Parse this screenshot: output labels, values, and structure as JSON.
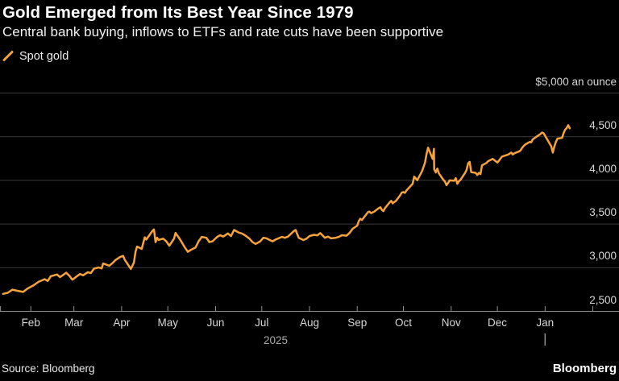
{
  "header": {
    "title": "Gold Emerged from Its Best Year Since 1979",
    "subtitle": "Central bank buying, inflows to ETFs and rate cuts have been supportive"
  },
  "legend": {
    "label": "Spot gold"
  },
  "footer": {
    "source": "Source: Bloomberg",
    "logo": "Bloomberg"
  },
  "colors": {
    "background": "#000000",
    "accent": "#F7A23A",
    "grid": "#3b3b3b",
    "axis": "#8f8f8f",
    "text_primary": "#ffffff",
    "text_secondary": "#d6d6d6",
    "text_muted": "#a8a8a8"
  },
  "chart_data": {
    "type": "line",
    "title": "Gold Emerged from Its Best Year Since 1979",
    "subtitle": "Central bank buying, inflows to ETFs and rate cuts have been supportive",
    "grid": true,
    "legend_position": "top-left",
    "x_axis": {
      "day0": "2025-01-01",
      "domain_days": [
        11,
        413
      ],
      "tick_labels": [
        "Feb",
        "Mar",
        "Apr",
        "May",
        "Jun",
        "Jul",
        "Aug",
        "Sep",
        "Oct",
        "Nov",
        "Dec",
        "Jan"
      ],
      "tick_days": [
        31,
        59,
        90,
        120,
        151,
        181,
        212,
        243,
        273,
        304,
        334,
        365
      ],
      "extra_tick_days": [
        11,
        396
      ],
      "year_label": "2025",
      "year_label_day": 190,
      "year_start_marker_day": 365
    },
    "y_axis": {
      "domain": [
        2500,
        5000
      ],
      "ticks": [
        2500,
        3000,
        3500,
        4000,
        4500,
        5000
      ],
      "tick_labels": [
        "2,500",
        "3,000",
        "3,500",
        "4,000",
        "4,500"
      ],
      "top_label": "$5,000 an ounce",
      "unit": "USD per troy ounce"
    },
    "series": [
      {
        "name": "Spot gold",
        "color": "#F7A23A",
        "points": [
          [
            13,
            2700
          ],
          [
            16,
            2712
          ],
          [
            19,
            2748
          ],
          [
            22,
            2736
          ],
          [
            26,
            2722
          ],
          [
            29,
            2762
          ],
          [
            33,
            2800
          ],
          [
            36,
            2838
          ],
          [
            40,
            2868
          ],
          [
            42,
            2848
          ],
          [
            44,
            2902
          ],
          [
            48,
            2922
          ],
          [
            50,
            2892
          ],
          [
            54,
            2942
          ],
          [
            56,
            2908
          ],
          [
            58,
            2862
          ],
          [
            61,
            2902
          ],
          [
            63,
            2928
          ],
          [
            65,
            2912
          ],
          [
            68,
            2948
          ],
          [
            70,
            2938
          ],
          [
            72,
            2988
          ],
          [
            75,
            3002
          ],
          [
            77,
            2992
          ],
          [
            78,
            3048
          ],
          [
            82,
            3022
          ],
          [
            84,
            3052
          ],
          [
            86,
            3088
          ],
          [
            89,
            3122
          ],
          [
            91,
            3135
          ],
          [
            92,
            3092
          ],
          [
            96,
            2985
          ],
          [
            98,
            3060
          ],
          [
            99,
            3180
          ],
          [
            100,
            3242
          ],
          [
            103,
            3215
          ],
          [
            105,
            3348
          ],
          [
            106,
            3322
          ],
          [
            110,
            3422
          ],
          [
            111,
            3438
          ],
          [
            112,
            3292
          ],
          [
            113,
            3342
          ],
          [
            114,
            3318
          ],
          [
            117,
            3332
          ],
          [
            119,
            3302
          ],
          [
            121,
            3252
          ],
          [
            124,
            3332
          ],
          [
            125,
            3398
          ],
          [
            126,
            3372
          ],
          [
            128,
            3322
          ],
          [
            131,
            3232
          ],
          [
            133,
            3182
          ],
          [
            135,
            3205
          ],
          [
            138,
            3232
          ],
          [
            140,
            3302
          ],
          [
            142,
            3352
          ],
          [
            145,
            3342
          ],
          [
            147,
            3292
          ],
          [
            149,
            3302
          ],
          [
            152,
            3352
          ],
          [
            154,
            3372
          ],
          [
            156,
            3356
          ],
          [
            159,
            3392
          ],
          [
            161,
            3362
          ],
          [
            163,
            3432
          ],
          [
            166,
            3402
          ],
          [
            168,
            3392
          ],
          [
            170,
            3372
          ],
          [
            173,
            3332
          ],
          [
            175,
            3292
          ],
          [
            177,
            3272
          ],
          [
            180,
            3302
          ],
          [
            182,
            3342
          ],
          [
            184,
            3336
          ],
          [
            188,
            3302
          ],
          [
            190,
            3322
          ],
          [
            194,
            3352
          ],
          [
            196,
            3342
          ],
          [
            198,
            3356
          ],
          [
            202,
            3422
          ],
          [
            203,
            3432
          ],
          [
            205,
            3342
          ],
          [
            208,
            3316
          ],
          [
            210,
            3332
          ],
          [
            212,
            3362
          ],
          [
            215,
            3376
          ],
          [
            217,
            3370
          ],
          [
            219,
            3396
          ],
          [
            222,
            3342
          ],
          [
            224,
            3356
          ],
          [
            226,
            3336
          ],
          [
            229,
            3342
          ],
          [
            231,
            3352
          ],
          [
            233,
            3372
          ],
          [
            236,
            3366
          ],
          [
            238,
            3398
          ],
          [
            240,
            3446
          ],
          [
            243,
            3482
          ],
          [
            244,
            3532
          ],
          [
            245,
            3560
          ],
          [
            246,
            3546
          ],
          [
            250,
            3636
          ],
          [
            251,
            3642
          ],
          [
            252,
            3625
          ],
          [
            254,
            3642
          ],
          [
            257,
            3682
          ],
          [
            258,
            3692
          ],
          [
            259,
            3662
          ],
          [
            260,
            3648
          ],
          [
            261,
            3682
          ],
          [
            264,
            3746
          ],
          [
            265,
            3766
          ],
          [
            266,
            3736
          ],
          [
            267,
            3752
          ],
          [
            268,
            3762
          ],
          [
            271,
            3832
          ],
          [
            272,
            3862
          ],
          [
            273,
            3866
          ],
          [
            274,
            3856
          ],
          [
            275,
            3886
          ],
          [
            278,
            3942
          ],
          [
            279,
            3962
          ],
          [
            280,
            4042
          ],
          [
            281,
            4022
          ],
          [
            282,
            4002
          ],
          [
            285,
            4102
          ],
          [
            286,
            4152
          ],
          [
            287,
            4202
          ],
          [
            288,
            4302
          ],
          [
            289,
            4375
          ],
          [
            292,
            4245
          ],
          [
            292.8,
            4360
          ],
          [
            293,
            4128
          ],
          [
            294,
            4090
          ],
          [
            295,
            4135
          ],
          [
            296,
            4080
          ],
          [
            299,
            4005
          ],
          [
            300,
            3985
          ],
          [
            301,
            3945
          ],
          [
            302,
            3970
          ],
          [
            303,
            4000
          ],
          [
            306,
            3995
          ],
          [
            307,
            4025
          ],
          [
            308,
            3960
          ],
          [
            309,
            3990
          ],
          [
            310,
            4005
          ],
          [
            313,
            4085
          ],
          [
            314,
            4120
          ],
          [
            315,
            4195
          ],
          [
            316,
            4212
          ],
          [
            317,
            4095
          ],
          [
            320,
            4085
          ],
          [
            321,
            4062
          ],
          [
            322,
            4085
          ],
          [
            323,
            4072
          ],
          [
            324,
            4172
          ],
          [
            327,
            4200
          ],
          [
            328,
            4220
          ],
          [
            331,
            4245
          ],
          [
            334,
            4205
          ],
          [
            335,
            4225
          ],
          [
            337,
            4272
          ],
          [
            341,
            4295
          ],
          [
            343,
            4318
          ],
          [
            344,
            4295
          ],
          [
            345,
            4310
          ],
          [
            348,
            4330
          ],
          [
            349,
            4342
          ],
          [
            350,
            4370
          ],
          [
            351,
            4392
          ],
          [
            352,
            4410
          ],
          [
            355,
            4440
          ],
          [
            356,
            4435
          ],
          [
            357,
            4470
          ],
          [
            359,
            4495
          ],
          [
            362,
            4530
          ],
          [
            363,
            4548
          ],
          [
            364,
            4540
          ],
          [
            366,
            4480
          ],
          [
            369,
            4390
          ],
          [
            370,
            4318
          ],
          [
            371,
            4388
          ],
          [
            372,
            4440
          ],
          [
            373,
            4478
          ],
          [
            376,
            4486
          ],
          [
            377,
            4540
          ],
          [
            378,
            4580
          ],
          [
            379,
            4598
          ],
          [
            380,
            4632
          ],
          [
            381,
            4596
          ]
        ]
      }
    ]
  }
}
